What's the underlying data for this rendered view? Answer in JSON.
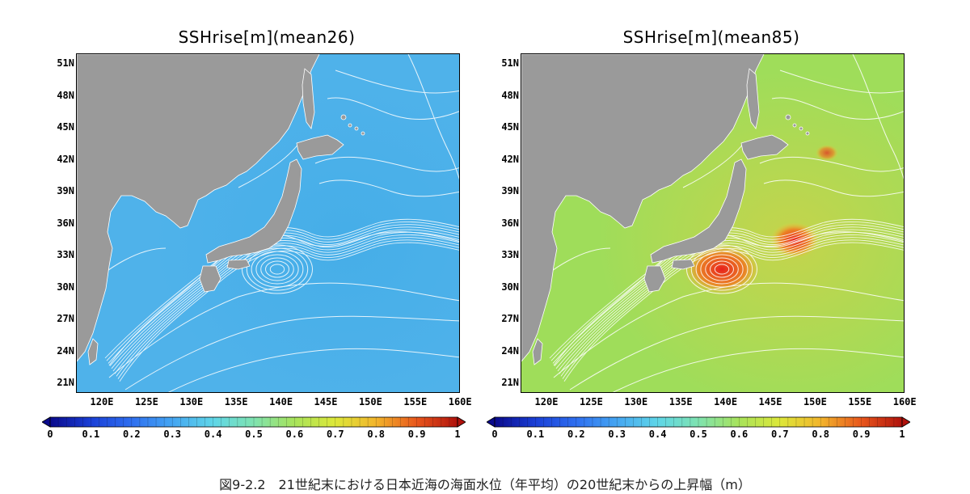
{
  "panels": [
    {
      "id": "left",
      "title": "SSHrise[m](mean26)",
      "ocean_color": "#4fb2ea",
      "eddy_color": null,
      "jet_color": "#3aa9e6"
    },
    {
      "id": "right",
      "title": "SSHrise[m](mean85)",
      "ocean_color": "#9fdd5a",
      "eddy_color": "#e8201c",
      "jet_color": "#f2c93a"
    }
  ],
  "axes": {
    "lat_labels": [
      "51N",
      "48N",
      "45N",
      "42N",
      "39N",
      "36N",
      "33N",
      "30N",
      "27N",
      "24N",
      "21N"
    ],
    "lon_labels": [
      "120E",
      "125E",
      "130E",
      "135E",
      "140E",
      "145E",
      "150E",
      "155E",
      "160E"
    ]
  },
  "colorbar": {
    "labels": [
      "0",
      "0.1",
      "0.2",
      "0.3",
      "0.4",
      "0.5",
      "0.6",
      "0.7",
      "0.8",
      "0.9",
      "1"
    ],
    "colors": [
      "#0a0a8c",
      "#1a3fd6",
      "#2f6ff0",
      "#45a6f2",
      "#5fd6e8",
      "#7fe3b0",
      "#a8e35a",
      "#dde83a",
      "#f2b52c",
      "#e8561c",
      "#b0120c"
    ]
  },
  "land_color": "#9a9a9a",
  "contour_color": "#ffffff",
  "caption": "図9-2.2　21世紀末における日本近海の海面水位（年平均）の20世紀末からの上昇幅（m）"
}
